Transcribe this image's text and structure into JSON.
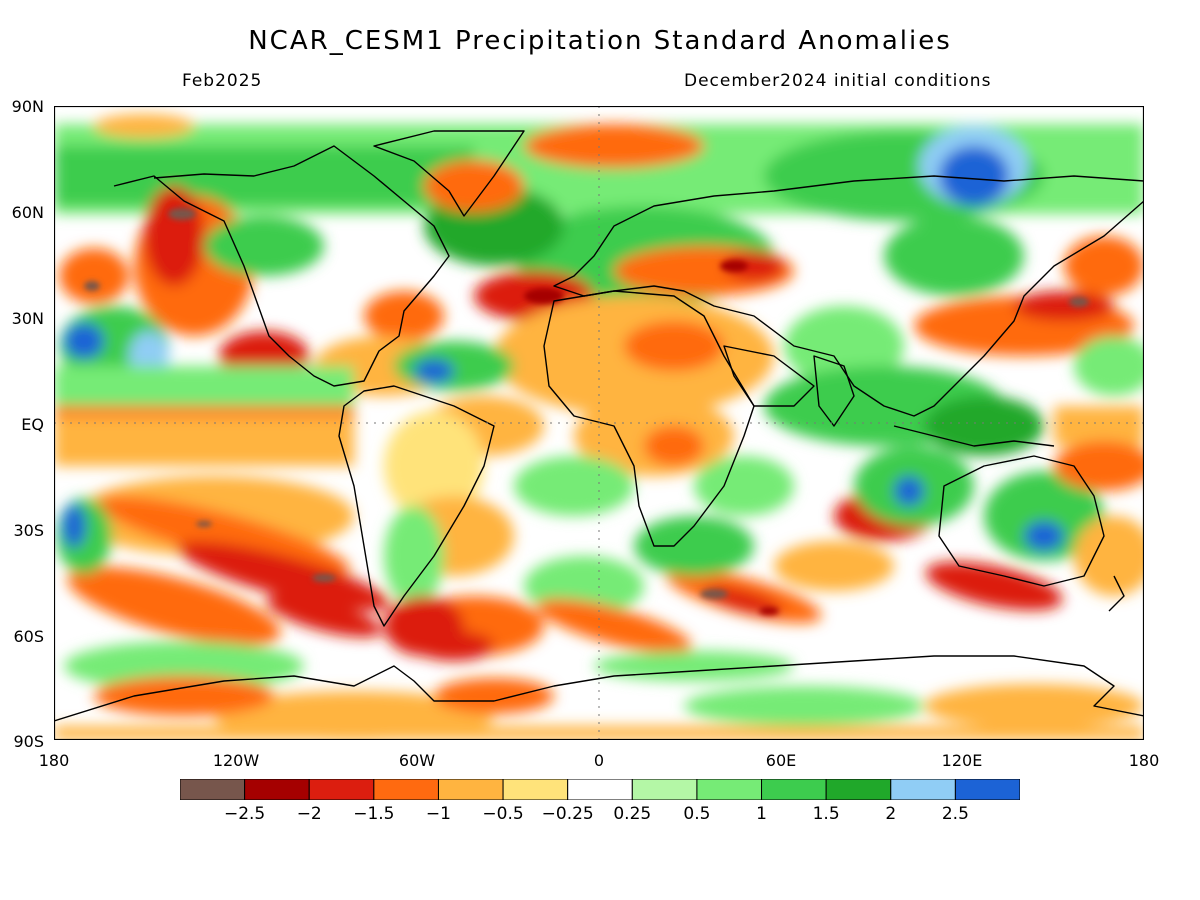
{
  "title": "NCAR_CESM1 Precipitation Standard Anomalies",
  "valid_month": "Feb2025",
  "init_conditions": "December2024 initial conditions",
  "lat_labels": [
    "90N",
    "60N",
    "30N",
    "EQ",
    "30S",
    "60S",
    "90S"
  ],
  "lon_labels": [
    "180",
    "120W",
    "60W",
    "0",
    "60E",
    "120E",
    "180"
  ],
  "colorbar": {
    "colors": [
      "#77564c",
      "#a50000",
      "#dc1e0f",
      "#ff6a10",
      "#ffb440",
      "#ffe37a",
      "#ffffff",
      "#b4f7a6",
      "#76eb76",
      "#3dcc4e",
      "#20a82a",
      "#90cdf5",
      "#1c63d6"
    ],
    "labels": [
      "−2.5",
      "−2",
      "−1.5",
      "−1",
      "−0.5",
      "−0.25",
      "0.25",
      "0.5",
      "1",
      "1.5",
      "2",
      "2.5"
    ]
  },
  "ocean_note_colors": {
    "equator_band": "#ffb440",
    "coast": "#000000"
  }
}
